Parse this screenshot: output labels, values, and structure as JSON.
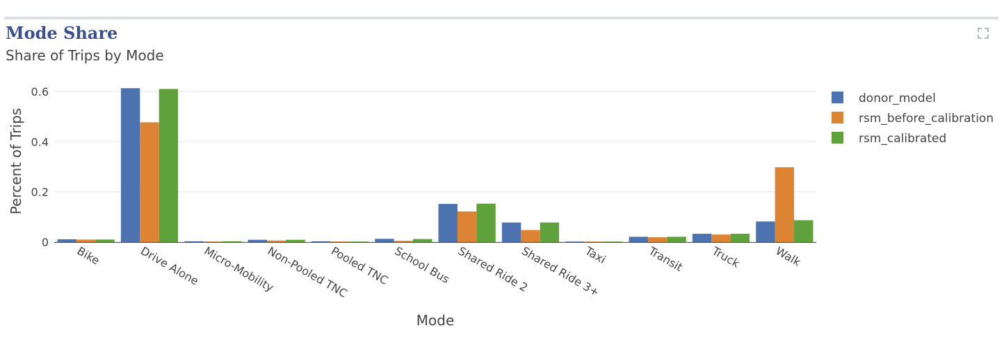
{
  "card": {
    "title": "Mode Share",
    "subtitle": "Share of Trips by Mode",
    "expand_icon": "expand-icon"
  },
  "chart_data": {
    "type": "bar",
    "xlabel": "Mode",
    "ylabel": "Percent of Trips",
    "ylim": [
      0,
      0.655
    ],
    "yticks": [
      0,
      0.2,
      0.4,
      0.6
    ],
    "ytick_labels": [
      "0",
      "0.2",
      "0.4",
      "0.6"
    ],
    "grid": true,
    "legend_placement": "top-right",
    "categories": [
      "Bike",
      "Drive Alone",
      "Micro-Mobility",
      "Non-Pooled TNC",
      "Pooled TNC",
      "School Bus",
      "Shared Ride 2",
      "Shared Ride 3+",
      "Taxi",
      "Transit",
      "Truck",
      "Walk"
    ],
    "series": [
      {
        "name": "donor_model",
        "color": "#4c72b0",
        "values": [
          0.011,
          0.613,
          0.003,
          0.009,
          0.003,
          0.013,
          0.152,
          0.078,
          0.002,
          0.021,
          0.033,
          0.082
        ]
      },
      {
        "name": "rsm_before_calibration",
        "color": "#dd8434",
        "values": [
          0.01,
          0.477,
          0.002,
          0.006,
          0.002,
          0.005,
          0.122,
          0.048,
          0.002,
          0.019,
          0.03,
          0.298
        ]
      },
      {
        "name": "rsm_calibrated",
        "color": "#5fa23c",
        "values": [
          0.01,
          0.61,
          0.003,
          0.009,
          0.002,
          0.012,
          0.153,
          0.078,
          0.002,
          0.021,
          0.033,
          0.087
        ]
      }
    ]
  }
}
